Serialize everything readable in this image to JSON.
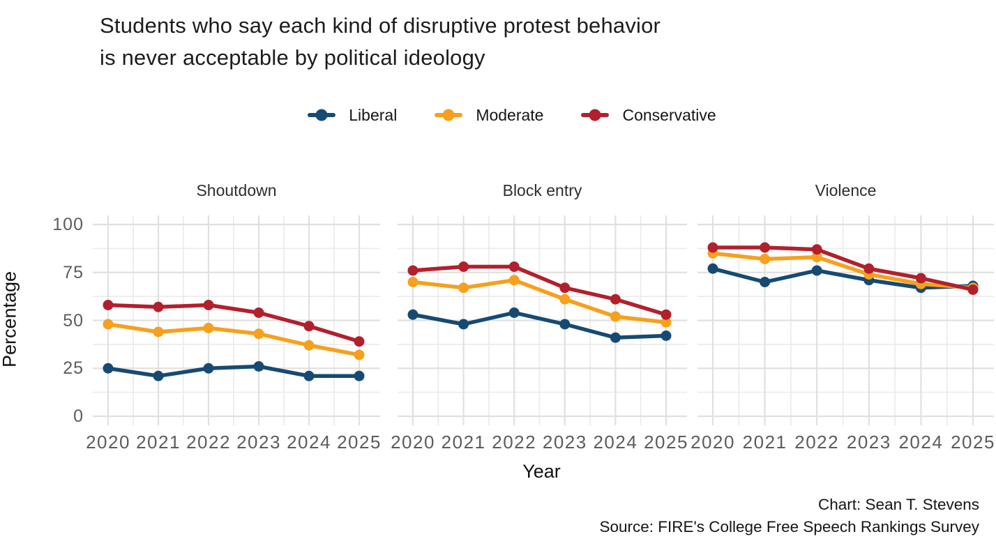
{
  "header": {
    "title_line1": "Students who say each kind of disruptive protest behavior",
    "title_line2": "is never acceptable by political ideology"
  },
  "legend": {
    "items": [
      {
        "label": "Liberal",
        "color": "#164A73"
      },
      {
        "label": "Moderate",
        "color": "#F6A01D"
      },
      {
        "label": "Conservative",
        "color": "#B2202C"
      }
    ]
  },
  "axes": {
    "x_label": "Year",
    "y_label": "Percentage",
    "y_ticks": [
      100,
      75,
      50,
      25,
      0
    ],
    "x_ticks": [
      "2020",
      "2021",
      "2022",
      "2023",
      "2024",
      "2025"
    ]
  },
  "credits": {
    "chart": "Chart: Sean T. Stevens",
    "source": "Source: FIRE's College Free Speech Rankings Survey"
  },
  "chart_data": {
    "type": "line",
    "x": [
      2020,
      2021,
      2022,
      2023,
      2024,
      2025
    ],
    "xlabel": "Year",
    "ylabel": "Percentage",
    "ylim": [
      0,
      100
    ],
    "y_major_ticks": [
      0,
      25,
      50,
      75,
      100
    ],
    "y_minor_step": 12.5,
    "grid": true,
    "legend_position": "top",
    "series_colors": {
      "Liberal": "#164A73",
      "Moderate": "#F6A01D",
      "Conservative": "#B2202C"
    },
    "facets": [
      {
        "title": "Shoutdown",
        "series": [
          {
            "name": "Liberal",
            "values": [
              25,
              21,
              25,
              26,
              21,
              21
            ]
          },
          {
            "name": "Moderate",
            "values": [
              48,
              44,
              46,
              43,
              37,
              32
            ]
          },
          {
            "name": "Conservative",
            "values": [
              58,
              57,
              58,
              54,
              47,
              39
            ]
          }
        ]
      },
      {
        "title": "Block entry",
        "series": [
          {
            "name": "Liberal",
            "values": [
              53,
              48,
              54,
              48,
              41,
              42
            ]
          },
          {
            "name": "Moderate",
            "values": [
              70,
              67,
              71,
              61,
              52,
              49
            ]
          },
          {
            "name": "Conservative",
            "values": [
              76,
              78,
              78,
              67,
              61,
              53
            ]
          }
        ]
      },
      {
        "title": "Violence",
        "series": [
          {
            "name": "Liberal",
            "values": [
              77,
              70,
              76,
              71,
              67,
              68
            ]
          },
          {
            "name": "Moderate",
            "values": [
              85,
              82,
              83,
              74,
              69,
              67
            ]
          },
          {
            "name": "Conservative",
            "values": [
              88,
              88,
              87,
              77,
              72,
              66
            ]
          }
        ]
      }
    ]
  }
}
